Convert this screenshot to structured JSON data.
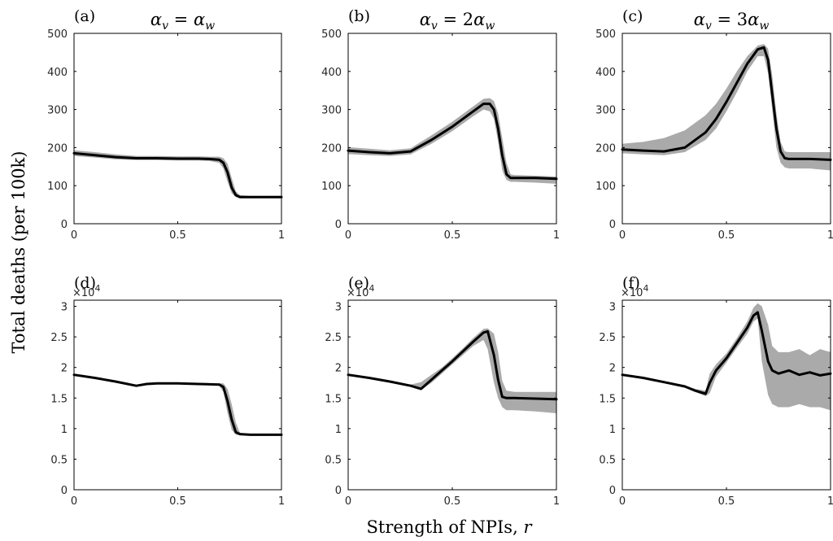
{
  "figure": {
    "ylabel": "Total deaths (per 100k)",
    "xlabel_text": "Strength of NPIs, ",
    "xlabel_var": "r"
  },
  "chart_data": [
    {
      "id": "a",
      "panel_label": "(a)",
      "type": "line",
      "title_lhs": "α",
      "title_lhs_sub": "v",
      "title_rhs_coef": "",
      "title_rhs": "α",
      "title_rhs_sub": "w",
      "xlim": [
        0,
        1
      ],
      "ylim": [
        0,
        500
      ],
      "exponent": "",
      "xticks": [
        0,
        0.5,
        1
      ],
      "xtick_labels": [
        "0",
        "0.5",
        "1"
      ],
      "yticks": [
        0,
        100,
        200,
        300,
        400,
        500
      ],
      "ytick_labels": [
        "0",
        "100",
        "200",
        "300",
        "400",
        "500"
      ],
      "series": [
        {
          "x": [
            0,
            0.1,
            0.2,
            0.3,
            0.4,
            0.5,
            0.6,
            0.65,
            0.7,
            0.72,
            0.74,
            0.76,
            0.78,
            0.8,
            0.85,
            0.9,
            1.0
          ],
          "mean": [
            185,
            180,
            175,
            172,
            172,
            171,
            171,
            170,
            168,
            160,
            135,
            95,
            75,
            70,
            70,
            70,
            70
          ],
          "lower": [
            178,
            174,
            169,
            167,
            167,
            166,
            166,
            165,
            160,
            145,
            110,
            80,
            70,
            67,
            67,
            67,
            67
          ],
          "upper": [
            193,
            188,
            182,
            178,
            178,
            177,
            177,
            176,
            176,
            172,
            158,
            120,
            85,
            75,
            73,
            73,
            73
          ]
        }
      ]
    },
    {
      "id": "b",
      "panel_label": "(b)",
      "type": "line",
      "title_lhs": "α",
      "title_lhs_sub": "v",
      "title_rhs_coef": "2",
      "title_rhs": "α",
      "title_rhs_sub": "w",
      "xlim": [
        0,
        1
      ],
      "ylim": [
        0,
        500
      ],
      "exponent": "",
      "xticks": [
        0,
        0.5,
        1
      ],
      "xtick_labels": [
        "0",
        "0.5",
        "1"
      ],
      "yticks": [
        0,
        100,
        200,
        300,
        400,
        500
      ],
      "ytick_labels": [
        "0",
        "100",
        "200",
        "300",
        "400",
        "500"
      ],
      "series": [
        {
          "x": [
            0,
            0.1,
            0.2,
            0.3,
            0.4,
            0.5,
            0.6,
            0.65,
            0.68,
            0.7,
            0.72,
            0.74,
            0.76,
            0.78,
            0.8,
            0.9,
            1.0
          ],
          "mean": [
            192,
            188,
            185,
            190,
            220,
            255,
            295,
            315,
            315,
            300,
            250,
            180,
            130,
            120,
            120,
            120,
            118
          ],
          "lower": [
            183,
            180,
            178,
            182,
            210,
            243,
            282,
            300,
            295,
            275,
            215,
            140,
            115,
            110,
            110,
            108,
            105
          ],
          "upper": [
            201,
            197,
            193,
            198,
            232,
            268,
            308,
            328,
            330,
            322,
            290,
            225,
            160,
            130,
            128,
            126,
            124
          ]
        }
      ]
    },
    {
      "id": "c",
      "panel_label": "(c)",
      "type": "line",
      "title_lhs": "α",
      "title_lhs_sub": "v",
      "title_rhs_coef": "3",
      "title_rhs": "α",
      "title_rhs_sub": "w",
      "xlim": [
        0,
        1
      ],
      "ylim": [
        0,
        500
      ],
      "exponent": "",
      "xticks": [
        0,
        0.5,
        1
      ],
      "xtick_labels": [
        "0",
        "0.5",
        "1"
      ],
      "yticks": [
        0,
        100,
        200,
        300,
        400,
        500
      ],
      "ytick_labels": [
        "0",
        "100",
        "200",
        "300",
        "400",
        "500"
      ],
      "series": [
        {
          "x": [
            0,
            0.1,
            0.2,
            0.3,
            0.4,
            0.45,
            0.5,
            0.55,
            0.6,
            0.65,
            0.68,
            0.7,
            0.72,
            0.74,
            0.76,
            0.78,
            0.8,
            0.9,
            1.0
          ],
          "mean": [
            195,
            192,
            190,
            200,
            240,
            275,
            320,
            370,
            420,
            458,
            463,
            430,
            340,
            250,
            190,
            172,
            170,
            170,
            168
          ],
          "lower": [
            185,
            182,
            180,
            188,
            220,
            250,
            295,
            345,
            400,
            440,
            440,
            395,
            300,
            200,
            160,
            148,
            145,
            145,
            140
          ],
          "upper": [
            210,
            215,
            225,
            245,
            285,
            315,
            355,
            400,
            440,
            468,
            472,
            460,
            390,
            290,
            215,
            190,
            188,
            188,
            188
          ]
        }
      ]
    },
    {
      "id": "d",
      "panel_label": "(d)",
      "type": "line",
      "xlim": [
        0,
        1
      ],
      "ylim": [
        0,
        31000
      ],
      "exponent": "4",
      "xticks": [
        0,
        0.5,
        1
      ],
      "xtick_labels": [
        "0",
        "0.5",
        "1"
      ],
      "yticks": [
        0,
        5000,
        10000,
        15000,
        20000,
        25000,
        30000
      ],
      "ytick_labels": [
        "0",
        "0.5",
        "1",
        "1.5",
        "2",
        "2.5",
        "3"
      ],
      "series": [
        {
          "x": [
            0,
            0.1,
            0.2,
            0.3,
            0.35,
            0.4,
            0.5,
            0.6,
            0.7,
            0.72,
            0.74,
            0.76,
            0.78,
            0.8,
            0.85,
            0.9,
            1.0
          ],
          "mean": [
            18800,
            18300,
            17700,
            17000,
            17300,
            17400,
            17400,
            17300,
            17200,
            16800,
            14500,
            11500,
            9400,
            9100,
            9000,
            9000,
            9000
          ],
          "lower": [
            18700,
            18200,
            17600,
            16900,
            17200,
            17300,
            17300,
            17200,
            17000,
            16000,
            12500,
            9800,
            9000,
            8900,
            8900,
            8900,
            8900
          ],
          "upper": [
            18900,
            18400,
            17800,
            17100,
            17400,
            17500,
            17500,
            17400,
            17400,
            17400,
            16500,
            14000,
            11000,
            9300,
            9100,
            9100,
            9100
          ]
        }
      ]
    },
    {
      "id": "e",
      "panel_label": "(e)",
      "type": "line",
      "xlim": [
        0,
        1
      ],
      "ylim": [
        0,
        31000
      ],
      "exponent": "4",
      "xticks": [
        0,
        0.5,
        1
      ],
      "xtick_labels": [
        "0",
        "0.5",
        "1"
      ],
      "yticks": [
        0,
        5000,
        10000,
        15000,
        20000,
        25000,
        30000
      ],
      "ytick_labels": [
        "0",
        "0.5",
        "1",
        "1.5",
        "2",
        "2.5",
        "3"
      ],
      "series": [
        {
          "x": [
            0,
            0.1,
            0.2,
            0.3,
            0.35,
            0.4,
            0.45,
            0.5,
            0.55,
            0.6,
            0.65,
            0.67,
            0.7,
            0.72,
            0.74,
            0.76,
            0.8,
            0.9,
            1.0
          ],
          "mean": [
            18800,
            18300,
            17700,
            17000,
            16500,
            18000,
            19500,
            21000,
            22600,
            24200,
            25700,
            25900,
            22000,
            18000,
            15200,
            15000,
            15000,
            14900,
            14800
          ],
          "lower": [
            18700,
            18200,
            17600,
            16900,
            16300,
            17500,
            19000,
            20500,
            22000,
            23500,
            24500,
            23000,
            17500,
            15000,
            13500,
            13000,
            13000,
            12800,
            12500
          ],
          "upper": [
            18900,
            18400,
            17800,
            17200,
            17600,
            18800,
            20000,
            21500,
            23100,
            24800,
            26300,
            26400,
            25500,
            22500,
            17800,
            16200,
            16000,
            16000,
            16000
          ]
        }
      ]
    },
    {
      "id": "f",
      "panel_label": "(f)",
      "type": "line",
      "xlim": [
        0,
        1
      ],
      "ylim": [
        0,
        31000
      ],
      "exponent": "4",
      "xticks": [
        0,
        0.5,
        1
      ],
      "xtick_labels": [
        "0",
        "0.5",
        "1"
      ],
      "yticks": [
        0,
        5000,
        10000,
        15000,
        20000,
        25000,
        30000
      ],
      "ytick_labels": [
        "0",
        "0.5",
        "1",
        "1.5",
        "2",
        "2.5",
        "3"
      ],
      "series": [
        {
          "x": [
            0,
            0.1,
            0.2,
            0.3,
            0.35,
            0.4,
            0.42,
            0.45,
            0.5,
            0.55,
            0.6,
            0.63,
            0.65,
            0.67,
            0.7,
            0.72,
            0.75,
            0.8,
            0.85,
            0.9,
            0.95,
            1.0
          ],
          "mean": [
            18800,
            18300,
            17600,
            16900,
            16200,
            15700,
            17500,
            19500,
            21500,
            24000,
            26500,
            28500,
            29000,
            26000,
            21000,
            19500,
            19000,
            19500,
            18800,
            19200,
            18700,
            19000
          ],
          "lower": [
            18700,
            18200,
            17500,
            16800,
            16000,
            15300,
            15800,
            18500,
            20800,
            23200,
            25500,
            27500,
            28000,
            21000,
            15500,
            14000,
            13500,
            13500,
            14000,
            13500,
            13500,
            13000
          ],
          "upper": [
            18900,
            18400,
            17700,
            17000,
            16500,
            16200,
            19000,
            20500,
            22300,
            24800,
            27500,
            29800,
            30500,
            30000,
            27000,
            23500,
            22500,
            22500,
            23000,
            22000,
            23000,
            22500
          ]
        }
      ]
    }
  ]
}
